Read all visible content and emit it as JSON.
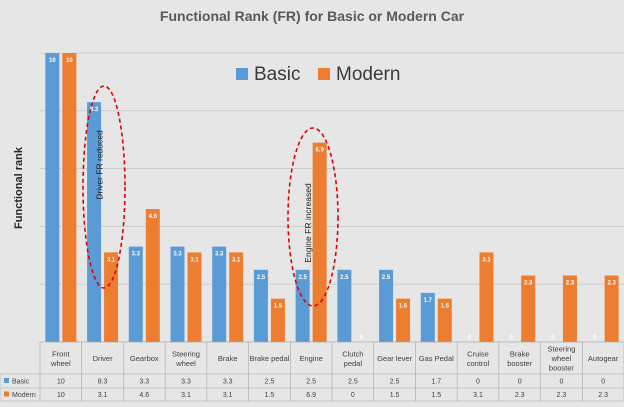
{
  "chart_data": {
    "type": "bar",
    "title": "Functional Rank (FR) for Basic or Modern Car",
    "ylabel": "Functional rank",
    "xlabel": "",
    "ylim": [
      0,
      10
    ],
    "grid": true,
    "legend_position": "top-center",
    "categories": [
      [
        "Front",
        "wheel"
      ],
      [
        "Driver"
      ],
      [
        "Gearbox"
      ],
      [
        "Steering",
        "wheel"
      ],
      [
        "Brake"
      ],
      [
        "Brake pedal"
      ],
      [
        "Engine"
      ],
      [
        "Clutch",
        "pedal"
      ],
      [
        "Gear lever"
      ],
      [
        "Gas Pedal"
      ],
      [
        "Cruise",
        "control"
      ],
      [
        "Brake",
        "booster"
      ],
      [
        "Steering",
        "wheel",
        "booster"
      ],
      [
        "Autogear"
      ]
    ],
    "series": [
      {
        "name": "Basic",
        "color": "#5b9bd5",
        "values": [
          10,
          8.3,
          3.3,
          3.3,
          3.3,
          2.5,
          2.5,
          2.5,
          2.5,
          1.7,
          0,
          0,
          0,
          0
        ],
        "table_values": [
          "10",
          "8.3",
          "3.3",
          "3.3",
          "3.3",
          "2.5",
          "2.5",
          "2.5",
          "2.5",
          "1.7",
          "0",
          "0",
          "0",
          "0"
        ]
      },
      {
        "name": "Modern",
        "color": "#ed7d31",
        "values": [
          10,
          3.1,
          4.6,
          3.1,
          3.1,
          1.5,
          6.9,
          0,
          1.5,
          1.5,
          3.1,
          2.3,
          2.3,
          2.3
        ],
        "table_values": [
          "10",
          "3.1",
          "4.6",
          "3.1",
          "3.1",
          "1.5",
          "6.9",
          "0",
          "1.5",
          "1.5",
          "3.1",
          "2.3",
          "2.3",
          "2.3"
        ]
      }
    ],
    "annotations": [
      {
        "text": "Driver FR reduced",
        "category_index": 1
      },
      {
        "text": "Engine FR increased",
        "category_index": 6
      }
    ]
  }
}
